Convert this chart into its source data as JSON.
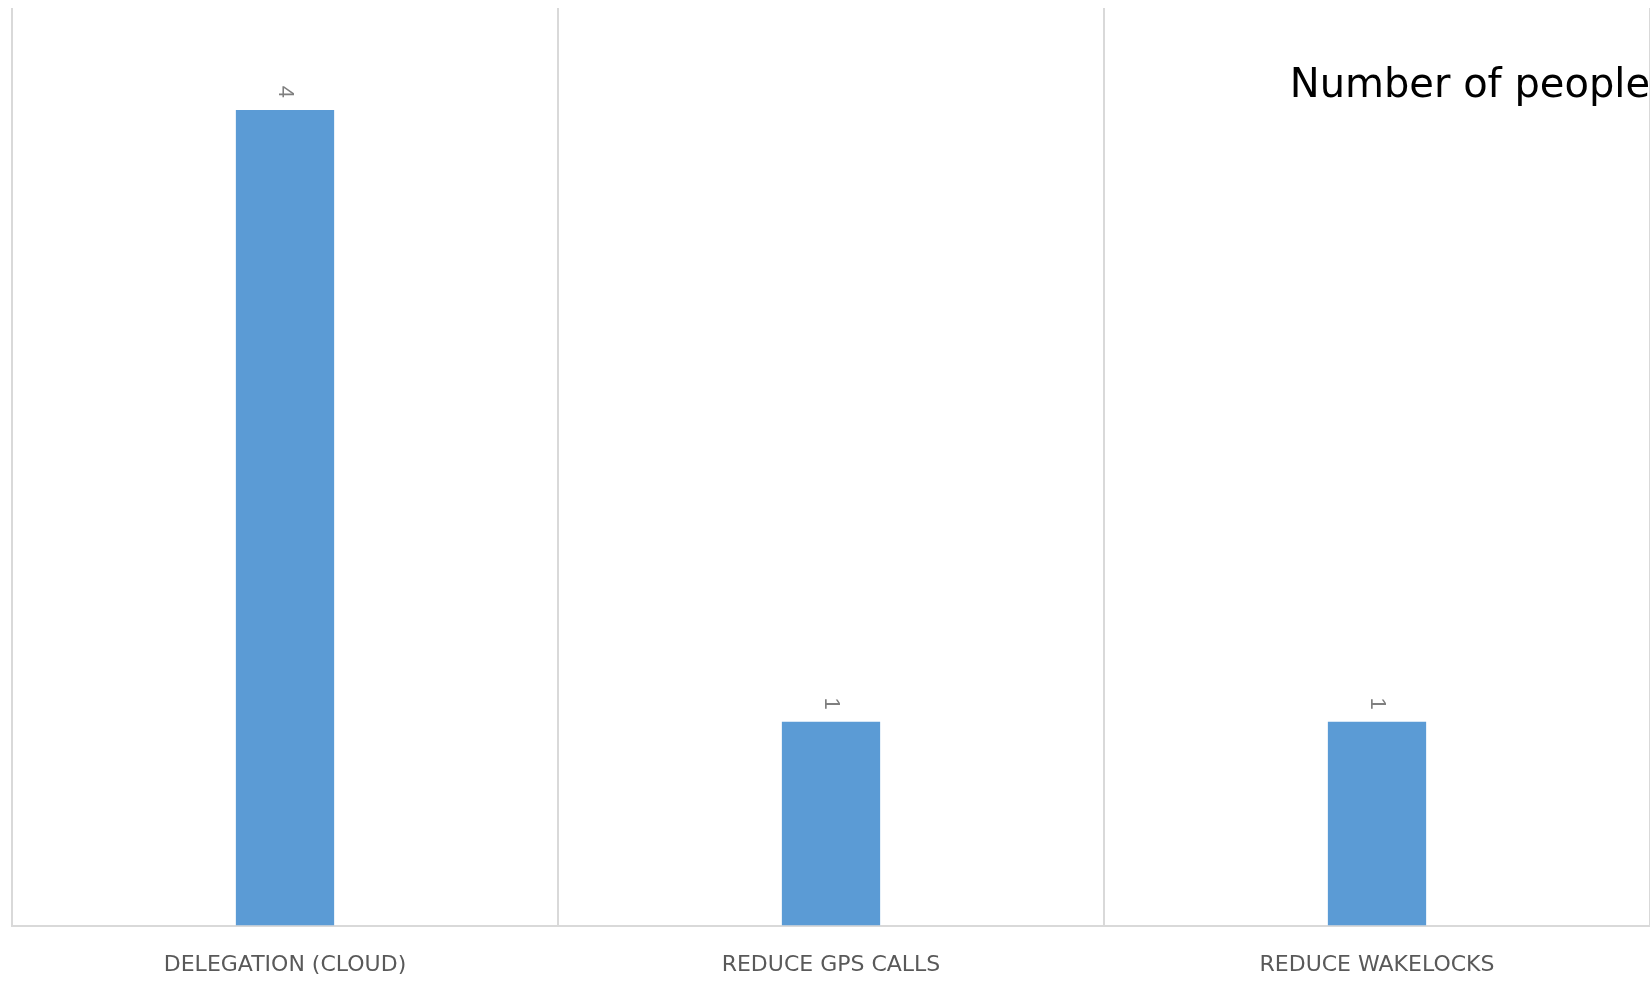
{
  "chart_data": {
    "type": "bar",
    "categories": [
      "DELEGATION (CLOUD)",
      "REDUCE GPS CALLS",
      "REDUCE WAKELOCKS"
    ],
    "values": [
      4,
      1,
      1
    ],
    "color": "#5b9bd5",
    "ylim": [
      0,
      4.5
    ],
    "tick_labels": "x",
    "grid": "x",
    "data_labels": true,
    "annotations": [
      "Number of people"
    ]
  }
}
